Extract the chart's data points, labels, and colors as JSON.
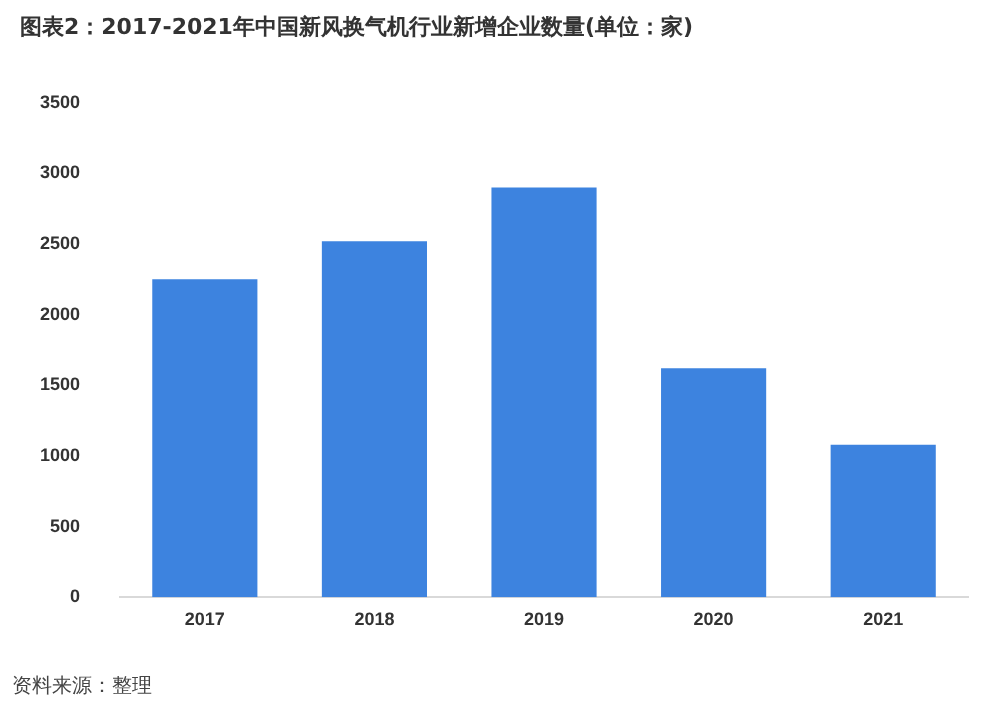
{
  "chart_data": {
    "type": "bar",
    "title": "图表2：2017-2021年中国新风换气机行业新增企业数量(单位：家)",
    "categories": [
      "2017",
      "2018",
      "2019",
      "2020",
      "2021"
    ],
    "values": [
      2250,
      2520,
      2900,
      1620,
      1080
    ],
    "color": "#3d83df",
    "ylim": [
      0,
      3500
    ],
    "yticks": [
      0,
      500,
      1000,
      1500,
      2000,
      2500,
      3000,
      3500
    ],
    "grid": false,
    "legend": false,
    "annotations": [
      "资料来源：整理"
    ]
  }
}
